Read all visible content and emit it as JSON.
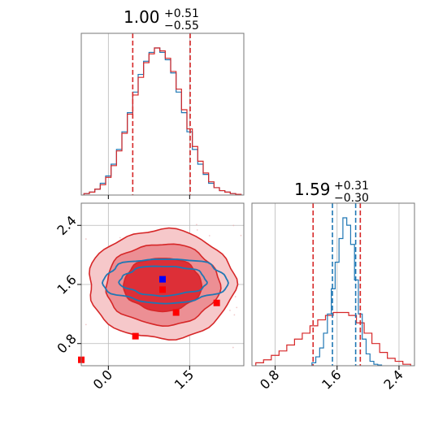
{
  "chart_data": {
    "type": "corner",
    "colors": {
      "red": "#d62728",
      "blue": "#1f77b4",
      "point_blue": "#0000ff",
      "point_red": "#ff0000"
    },
    "grid": true,
    "param1": {
      "title_main": "1.00",
      "title_plus": "+0.51",
      "title_minus": "−0.55",
      "median": 1.0,
      "lo": 0.45,
      "hi": 1.51,
      "xlim": [
        -0.5,
        2.5
      ],
      "ticks": [
        0.0,
        1.5
      ],
      "tick_labels": [
        "0.0",
        "1.5"
      ]
    },
    "param2": {
      "title_main": "1.59",
      "title_plus": "+0.31",
      "title_minus": "−0.30",
      "median": 1.59,
      "lo": 1.29,
      "hi": 1.9,
      "xlim": [
        0.5,
        2.6
      ],
      "ticks": [
        0.8,
        1.6,
        2.4
      ],
      "tick_labels": [
        "0.8",
        "1.6",
        "2.4"
      ],
      "blue_lo": 1.54,
      "blue_hi": 1.84,
      "blue_q1": 1.83
    },
    "hist_red_1": {
      "x": [
        -0.4,
        -0.3,
        -0.2,
        -0.1,
        0.0,
        0.1,
        0.2,
        0.3,
        0.4,
        0.5,
        0.6,
        0.7,
        0.8,
        0.9,
        1.0,
        1.1,
        1.2,
        1.3,
        1.4,
        1.5,
        1.6,
        1.7,
        1.8,
        1.9,
        2.0,
        2.1,
        2.2,
        2.3,
        2.4
      ],
      "density": [
        0.01,
        0.02,
        0.04,
        0.07,
        0.12,
        0.2,
        0.3,
        0.42,
        0.55,
        0.68,
        0.8,
        0.9,
        0.96,
        1.0,
        0.98,
        0.93,
        0.84,
        0.72,
        0.58,
        0.45,
        0.33,
        0.23,
        0.15,
        0.09,
        0.05,
        0.03,
        0.02,
        0.01,
        0.005
      ]
    },
    "hist_blue_1": {
      "x": [
        -0.4,
        -0.3,
        -0.2,
        -0.1,
        0.0,
        0.1,
        0.2,
        0.3,
        0.4,
        0.5,
        0.6,
        0.7,
        0.8,
        0.9,
        1.0,
        1.1,
        1.2,
        1.3,
        1.4,
        1.5,
        1.6,
        1.7,
        1.8,
        1.9,
        2.0,
        2.1,
        2.2,
        2.3,
        2.4
      ],
      "density": [
        0.01,
        0.02,
        0.04,
        0.08,
        0.13,
        0.21,
        0.31,
        0.43,
        0.56,
        0.7,
        0.82,
        0.91,
        0.97,
        1.0,
        0.97,
        0.92,
        0.83,
        0.7,
        0.56,
        0.43,
        0.31,
        0.21,
        0.14,
        0.08,
        0.05,
        0.03,
        0.02,
        0.01,
        0.005
      ]
    },
    "hist_red_2": {
      "x": [
        0.6,
        0.7,
        0.8,
        0.9,
        1.0,
        1.1,
        1.2,
        1.3,
        1.4,
        1.5,
        1.6,
        1.7,
        1.8,
        1.9,
        2.0,
        2.1,
        2.2,
        2.3,
        2.4,
        2.5
      ],
      "density": [
        0.02,
        0.04,
        0.07,
        0.1,
        0.14,
        0.18,
        0.22,
        0.27,
        0.31,
        0.34,
        0.36,
        0.36,
        0.34,
        0.29,
        0.22,
        0.15,
        0.09,
        0.05,
        0.03,
        0.01
      ]
    },
    "hist_blue_2": {
      "x": [
        1.3,
        1.35,
        1.4,
        1.45,
        1.5,
        1.55,
        1.6,
        1.65,
        1.7,
        1.75,
        1.8,
        1.85,
        1.9,
        1.95,
        2.0,
        2.05,
        2.1,
        2.15
      ],
      "density": [
        0.02,
        0.06,
        0.12,
        0.22,
        0.35,
        0.52,
        0.7,
        0.86,
        1.0,
        0.95,
        0.82,
        0.58,
        0.35,
        0.18,
        0.08,
        0.03,
        0.01,
        0.005
      ]
    },
    "contours_red": [
      {
        "level": 0.98,
        "cx": 0.98,
        "cy": 1.6,
        "rx": 1.35,
        "ry": 0.74,
        "fill": "#f6c8ca"
      },
      {
        "level": 0.86,
        "cx": 1.0,
        "cy": 1.6,
        "rx": 1.05,
        "ry": 0.55,
        "fill": "#ec8f94"
      },
      {
        "level": 0.39,
        "cx": 1.0,
        "cy": 1.6,
        "rx": 0.72,
        "ry": 0.36,
        "fill": "#dd2f37"
      }
    ],
    "contours_blue": [
      {
        "level": 0.86,
        "cx": 1.05,
        "cy": 1.65,
        "rx": 1.15,
        "ry": 0.3
      },
      {
        "level": 0.39,
        "cx": 1.02,
        "cy": 1.65,
        "rx": 0.8,
        "ry": 0.2
      }
    ],
    "points": [
      {
        "x": 1.0,
        "y": 1.67,
        "color": "point_blue"
      },
      {
        "x": 1.0,
        "y": 1.53,
        "color": "point_red"
      },
      {
        "x": 1.25,
        "y": 1.22,
        "color": "point_red"
      },
      {
        "x": 2.0,
        "y": 1.35,
        "color": "point_red"
      },
      {
        "x": 0.5,
        "y": 0.9,
        "color": "point_red"
      },
      {
        "x": -0.5,
        "y": 0.58,
        "color": "point_red"
      }
    ],
    "x2d_ticks": [
      0.0,
      1.5
    ],
    "x2d_tick_labels": [
      "0.0",
      "1.5"
    ],
    "y2d_ticks": [
      0.8,
      1.6,
      2.4
    ],
    "y2d_tick_labels": [
      "0.8",
      "1.6",
      "2.4"
    ],
    "y2d_lim": [
      0.5,
      2.7
    ]
  }
}
